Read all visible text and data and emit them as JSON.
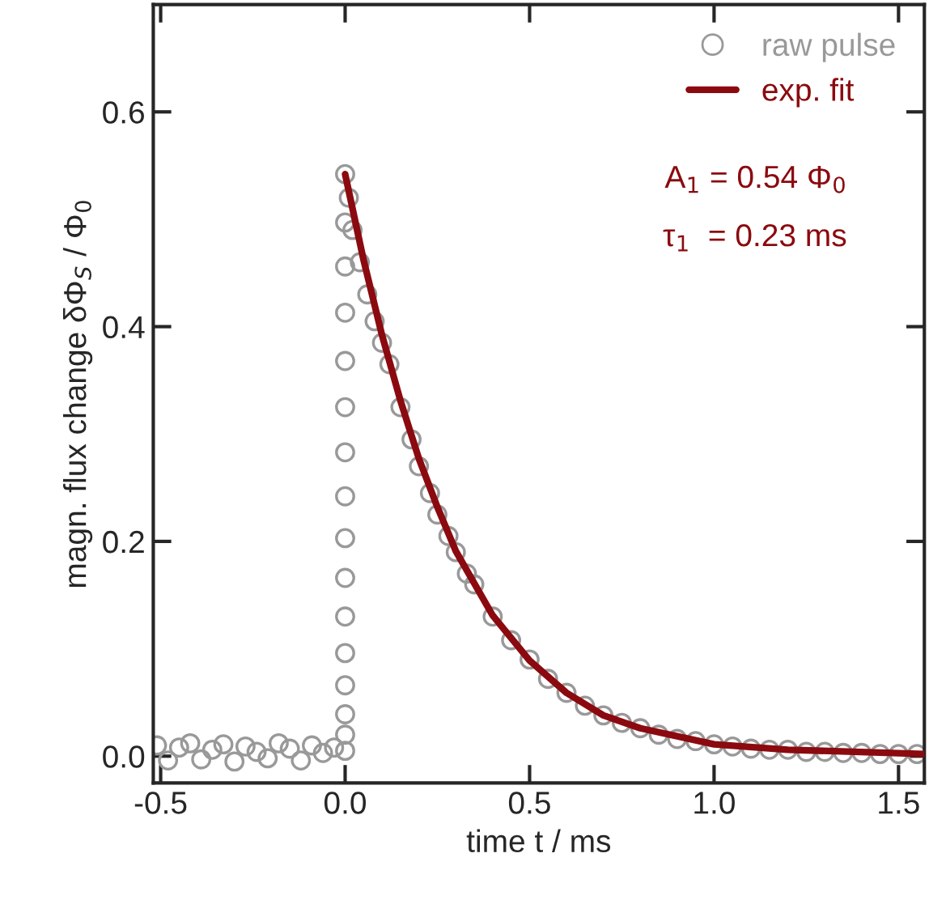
{
  "chart_data": {
    "type": "scatter",
    "xlabel": "time t / ms",
    "ylabel": "magn. flux change δΦ$_{S}$ / Φ$_{0}$",
    "xlim": [
      -0.52,
      1.57
    ],
    "ylim": [
      -0.025,
      0.7
    ],
    "xticks": [
      {
        "value": -0.5,
        "label": "-0.5"
      },
      {
        "value": 0,
        "label": "0.0"
      },
      {
        "value": 0.5,
        "label": "0.5"
      },
      {
        "value": 1.0,
        "label": "1.0"
      },
      {
        "value": 1.5,
        "label": "1.5"
      }
    ],
    "yticks": [
      {
        "value": 0,
        "label": "0.0"
      },
      0.2,
      0.4,
      0.6
    ],
    "grid": false,
    "legend": "top right",
    "annotations": [
      "A$_{1}$ = 0.54 Φ$_{0}$",
      "τ$_{1}$  = 0.23 ms"
    ],
    "series": [
      {
        "name": "raw pulse",
        "marker": "circle",
        "color": "#999999",
        "x": [
          -0.51,
          -0.48,
          -0.45,
          -0.42,
          -0.39,
          -0.36,
          -0.33,
          -0.3,
          -0.27,
          -0.24,
          -0.21,
          -0.18,
          -0.15,
          -0.12,
          -0.09,
          -0.06,
          -0.03,
          0.0,
          0.0,
          0.0,
          0.0,
          0.0,
          0.0,
          0.0,
          0.0,
          0.0,
          0.0,
          0.0,
          0.0,
          0.0,
          0.0,
          0.0,
          0.0,
          0.01,
          0.02,
          0.04,
          0.06,
          0.08,
          0.1,
          0.12,
          0.15,
          0.18,
          0.2,
          0.23,
          0.25,
          0.28,
          0.3,
          0.33,
          0.35,
          0.4,
          0.45,
          0.5,
          0.55,
          0.6,
          0.65,
          0.7,
          0.75,
          0.8,
          0.85,
          0.9,
          0.95,
          1.0,
          1.05,
          1.1,
          1.15,
          1.2,
          1.25,
          1.3,
          1.35,
          1.4,
          1.45,
          1.5,
          1.55
        ],
        "values": [
          0.01,
          -0.004,
          0.008,
          0.012,
          -0.003,
          0.006,
          0.011,
          -0.005,
          0.009,
          0.004,
          -0.002,
          0.012,
          0.007,
          -0.004,
          0.01,
          0.003,
          0.008,
          0.542,
          0.497,
          0.456,
          0.413,
          0.368,
          0.325,
          0.283,
          0.242,
          0.203,
          0.166,
          0.13,
          0.096,
          0.066,
          0.039,
          0.02,
          0.005,
          0.52,
          0.49,
          0.46,
          0.43,
          0.405,
          0.385,
          0.365,
          0.325,
          0.295,
          0.27,
          0.245,
          0.225,
          0.205,
          0.19,
          0.17,
          0.16,
          0.13,
          0.108,
          0.09,
          0.072,
          0.059,
          0.047,
          0.038,
          0.031,
          0.026,
          0.02,
          0.016,
          0.014,
          0.011,
          0.009,
          0.007,
          0.006,
          0.006,
          0.004,
          0.004,
          0.003,
          0.003,
          0.002,
          0.002,
          0.002
        ]
      },
      {
        "name": "exp. fit",
        "type": "line",
        "marker": "none",
        "line_style": "solid",
        "color": "#8b0a0f",
        "x": [
          0.0,
          0.05,
          0.1,
          0.15,
          0.2,
          0.25,
          0.3,
          0.4,
          0.5,
          0.6,
          0.7,
          0.8,
          1.0,
          1.2,
          1.57
        ],
        "values": [
          0.542,
          0.462,
          0.392,
          0.331,
          0.277,
          0.232,
          0.191,
          0.131,
          0.089,
          0.059,
          0.038,
          0.026,
          0.011,
          0.006,
          0.002
        ]
      }
    ]
  }
}
